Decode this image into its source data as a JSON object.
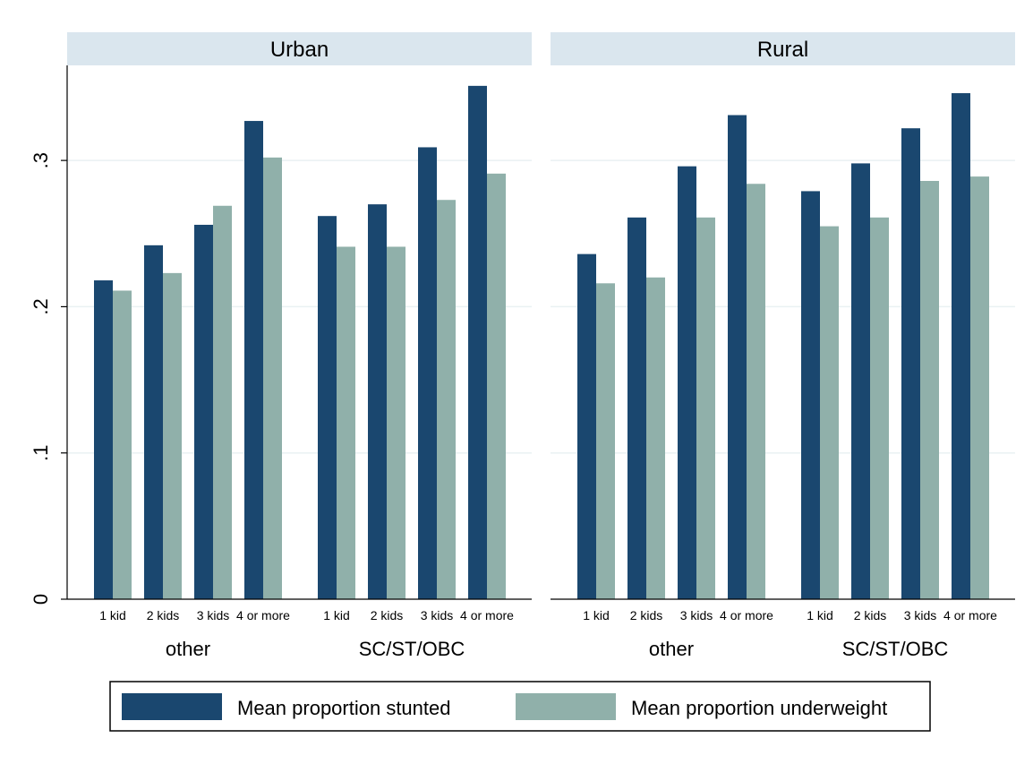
{
  "chart_data": {
    "type": "bar",
    "ylim": [
      0,
      0.365
    ],
    "yticks": [
      {
        "value": 0,
        "label": "0"
      },
      {
        "value": 0.1,
        "label": ".1"
      },
      {
        "value": 0.2,
        "label": ".2"
      },
      {
        "value": 0.3,
        "label": ".3"
      }
    ],
    "grid": true,
    "categories": [
      "1 kid",
      "2 kids",
      "3 kids",
      "4 or more"
    ],
    "groups": [
      "other",
      "SC/ST/OBC"
    ],
    "series": [
      {
        "key": "stunted",
        "name": "Mean proportion stunted",
        "color": "#1a476f"
      },
      {
        "key": "underweight",
        "name": "Mean proportion underweight",
        "color": "#90b0aa"
      }
    ],
    "panels": [
      {
        "title": "Urban",
        "data": {
          "other": {
            "stunted": [
              0.218,
              0.242,
              0.256,
              0.327
            ],
            "underweight": [
              0.211,
              0.223,
              0.269,
              0.302
            ]
          },
          "SC/ST/OBC": {
            "stunted": [
              0.262,
              0.27,
              0.309,
              0.351
            ],
            "underweight": [
              0.241,
              0.241,
              0.273,
              0.291
            ]
          }
        }
      },
      {
        "title": "Rural",
        "data": {
          "other": {
            "stunted": [
              0.236,
              0.261,
              0.296,
              0.331
            ],
            "underweight": [
              0.216,
              0.22,
              0.261,
              0.284
            ]
          },
          "SC/ST/OBC": {
            "stunted": [
              0.279,
              0.298,
              0.322,
              0.346
            ],
            "underweight": [
              0.255,
              0.261,
              0.286,
              0.289
            ]
          }
        }
      }
    ]
  }
}
